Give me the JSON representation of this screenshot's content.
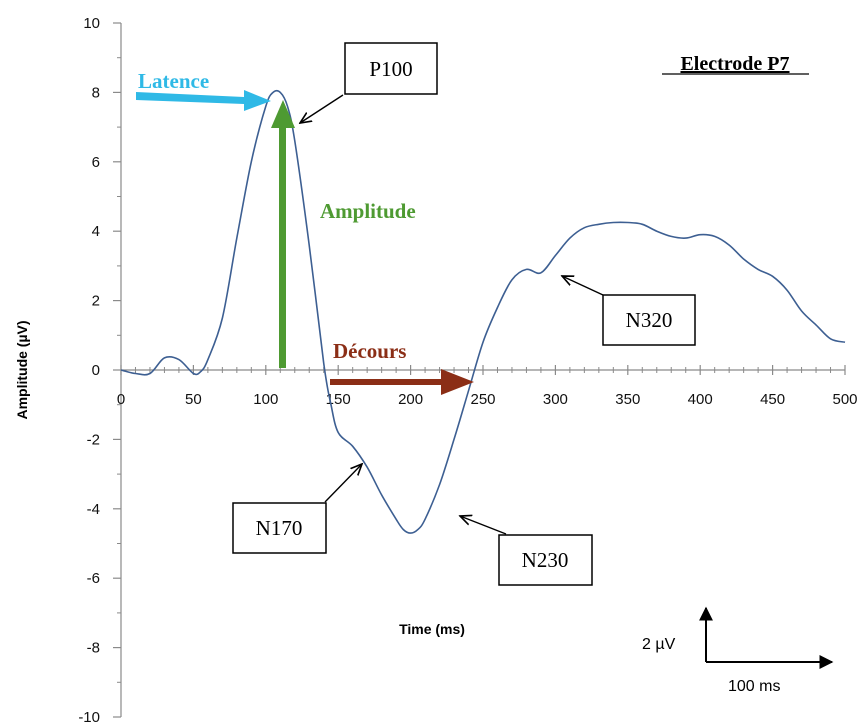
{
  "chart_data": {
    "type": "line",
    "title": "Electrode P7",
    "xlabel": "Time (ms)",
    "ylabel": "Amplitude (µV)",
    "xlim": [
      0,
      500
    ],
    "ylim": [
      -10,
      10
    ],
    "x_ticks": [
      0,
      50,
      100,
      150,
      200,
      250,
      300,
      350,
      400,
      450,
      500
    ],
    "x_tick_labels": [
      "0",
      "50",
      "100",
      "150",
      "200",
      "250",
      "300",
      "350",
      "400",
      "450",
      "500"
    ],
    "y_ticks": [
      10,
      8,
      6,
      4,
      2,
      0,
      -2,
      -4,
      -6,
      -8,
      -10
    ],
    "y_tick_labels": [
      "10",
      "8",
      "6",
      "4",
      "2",
      "0",
      "-2",
      "-4",
      "-6",
      "-8",
      "-10"
    ],
    "grid": false,
    "series": [
      {
        "color": "#3d5f92",
        "x": [
          0,
          10,
          20,
          30,
          40,
          50,
          55,
          60,
          70,
          80,
          90,
          100,
          105,
          110,
          115,
          120,
          130,
          140,
          145,
          150,
          160,
          170,
          180,
          190,
          195,
          200,
          205,
          210,
          220,
          230,
          240,
          250,
          260,
          270,
          280,
          290,
          300,
          310,
          320,
          330,
          340,
          350,
          360,
          370,
          380,
          390,
          400,
          410,
          420,
          430,
          440,
          450,
          460,
          470,
          480,
          490,
          500
        ],
        "y": [
          0.0,
          -0.1,
          -0.1,
          0.35,
          0.3,
          -0.1,
          -0.05,
          0.3,
          1.5,
          3.8,
          6.0,
          7.6,
          8.0,
          8.0,
          7.6,
          6.6,
          3.6,
          0.2,
          -1.0,
          -1.8,
          -2.2,
          -2.8,
          -3.6,
          -4.3,
          -4.6,
          -4.7,
          -4.6,
          -4.3,
          -3.3,
          -2.0,
          -0.6,
          0.8,
          1.8,
          2.6,
          2.9,
          2.8,
          3.3,
          3.8,
          4.1,
          4.2,
          4.25,
          4.25,
          4.2,
          4.0,
          3.85,
          3.8,
          3.9,
          3.85,
          3.6,
          3.2,
          2.9,
          2.7,
          2.3,
          1.7,
          1.3,
          0.9,
          0.8
        ]
      }
    ],
    "annotations": [
      {
        "text": "P100",
        "box": true
      },
      {
        "text": "N170",
        "box": true
      },
      {
        "text": "N230",
        "box": true
      },
      {
        "text": "N320",
        "box": true
      },
      {
        "text": "Latence",
        "color": "#2fb9e6"
      },
      {
        "text": "Amplitude",
        "color": "#4e9a32"
      },
      {
        "text": "Décours",
        "color": "#8b2e16"
      }
    ],
    "scale_bar": {
      "vertical_label": "2 µV",
      "horizontal_label": "100 ms"
    }
  }
}
